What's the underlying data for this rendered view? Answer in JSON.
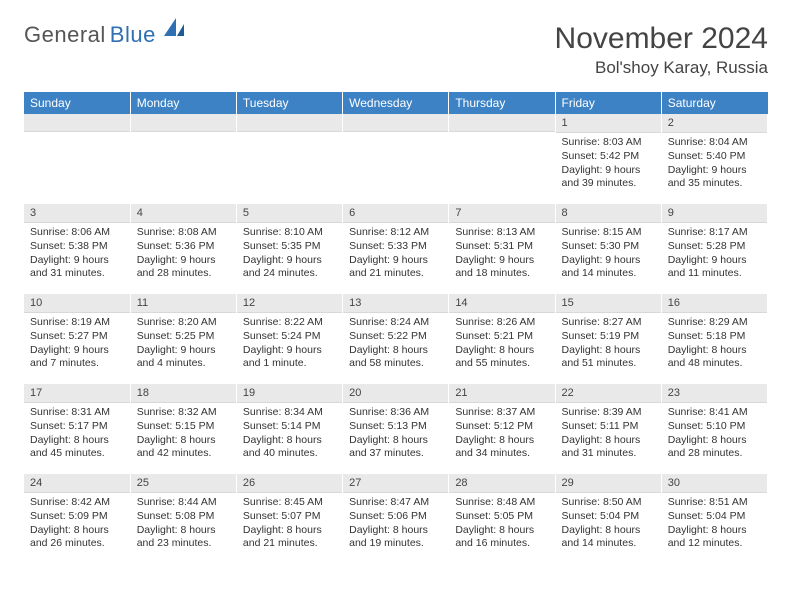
{
  "logo": {
    "text1": "General",
    "text2": "Blue"
  },
  "title": "November 2024",
  "location": "Bol'shoy Karay, Russia",
  "colors": {
    "header_bg": "#3d82c4",
    "header_text": "#ffffff",
    "daynum_bg": "#e9e9e9",
    "logo_blue": "#2f6fb3",
    "logo_gray": "#555555"
  },
  "weekdays": [
    "Sunday",
    "Monday",
    "Tuesday",
    "Wednesday",
    "Thursday",
    "Friday",
    "Saturday"
  ],
  "weeks": [
    [
      {
        "num": "",
        "lines": []
      },
      {
        "num": "",
        "lines": []
      },
      {
        "num": "",
        "lines": []
      },
      {
        "num": "",
        "lines": []
      },
      {
        "num": "",
        "lines": []
      },
      {
        "num": "1",
        "lines": [
          "Sunrise: 8:03 AM",
          "Sunset: 5:42 PM",
          "Daylight: 9 hours and 39 minutes."
        ]
      },
      {
        "num": "2",
        "lines": [
          "Sunrise: 8:04 AM",
          "Sunset: 5:40 PM",
          "Daylight: 9 hours and 35 minutes."
        ]
      }
    ],
    [
      {
        "num": "3",
        "lines": [
          "Sunrise: 8:06 AM",
          "Sunset: 5:38 PM",
          "Daylight: 9 hours and 31 minutes."
        ]
      },
      {
        "num": "4",
        "lines": [
          "Sunrise: 8:08 AM",
          "Sunset: 5:36 PM",
          "Daylight: 9 hours and 28 minutes."
        ]
      },
      {
        "num": "5",
        "lines": [
          "Sunrise: 8:10 AM",
          "Sunset: 5:35 PM",
          "Daylight: 9 hours and 24 minutes."
        ]
      },
      {
        "num": "6",
        "lines": [
          "Sunrise: 8:12 AM",
          "Sunset: 5:33 PM",
          "Daylight: 9 hours and 21 minutes."
        ]
      },
      {
        "num": "7",
        "lines": [
          "Sunrise: 8:13 AM",
          "Sunset: 5:31 PM",
          "Daylight: 9 hours and 18 minutes."
        ]
      },
      {
        "num": "8",
        "lines": [
          "Sunrise: 8:15 AM",
          "Sunset: 5:30 PM",
          "Daylight: 9 hours and 14 minutes."
        ]
      },
      {
        "num": "9",
        "lines": [
          "Sunrise: 8:17 AM",
          "Sunset: 5:28 PM",
          "Daylight: 9 hours and 11 minutes."
        ]
      }
    ],
    [
      {
        "num": "10",
        "lines": [
          "Sunrise: 8:19 AM",
          "Sunset: 5:27 PM",
          "Daylight: 9 hours and 7 minutes."
        ]
      },
      {
        "num": "11",
        "lines": [
          "Sunrise: 8:20 AM",
          "Sunset: 5:25 PM",
          "Daylight: 9 hours and 4 minutes."
        ]
      },
      {
        "num": "12",
        "lines": [
          "Sunrise: 8:22 AM",
          "Sunset: 5:24 PM",
          "Daylight: 9 hours and 1 minute."
        ]
      },
      {
        "num": "13",
        "lines": [
          "Sunrise: 8:24 AM",
          "Sunset: 5:22 PM",
          "Daylight: 8 hours and 58 minutes."
        ]
      },
      {
        "num": "14",
        "lines": [
          "Sunrise: 8:26 AM",
          "Sunset: 5:21 PM",
          "Daylight: 8 hours and 55 minutes."
        ]
      },
      {
        "num": "15",
        "lines": [
          "Sunrise: 8:27 AM",
          "Sunset: 5:19 PM",
          "Daylight: 8 hours and 51 minutes."
        ]
      },
      {
        "num": "16",
        "lines": [
          "Sunrise: 8:29 AM",
          "Sunset: 5:18 PM",
          "Daylight: 8 hours and 48 minutes."
        ]
      }
    ],
    [
      {
        "num": "17",
        "lines": [
          "Sunrise: 8:31 AM",
          "Sunset: 5:17 PM",
          "Daylight: 8 hours and 45 minutes."
        ]
      },
      {
        "num": "18",
        "lines": [
          "Sunrise: 8:32 AM",
          "Sunset: 5:15 PM",
          "Daylight: 8 hours and 42 minutes."
        ]
      },
      {
        "num": "19",
        "lines": [
          "Sunrise: 8:34 AM",
          "Sunset: 5:14 PM",
          "Daylight: 8 hours and 40 minutes."
        ]
      },
      {
        "num": "20",
        "lines": [
          "Sunrise: 8:36 AM",
          "Sunset: 5:13 PM",
          "Daylight: 8 hours and 37 minutes."
        ]
      },
      {
        "num": "21",
        "lines": [
          "Sunrise: 8:37 AM",
          "Sunset: 5:12 PM",
          "Daylight: 8 hours and 34 minutes."
        ]
      },
      {
        "num": "22",
        "lines": [
          "Sunrise: 8:39 AM",
          "Sunset: 5:11 PM",
          "Daylight: 8 hours and 31 minutes."
        ]
      },
      {
        "num": "23",
        "lines": [
          "Sunrise: 8:41 AM",
          "Sunset: 5:10 PM",
          "Daylight: 8 hours and 28 minutes."
        ]
      }
    ],
    [
      {
        "num": "24",
        "lines": [
          "Sunrise: 8:42 AM",
          "Sunset: 5:09 PM",
          "Daylight: 8 hours and 26 minutes."
        ]
      },
      {
        "num": "25",
        "lines": [
          "Sunrise: 8:44 AM",
          "Sunset: 5:08 PM",
          "Daylight: 8 hours and 23 minutes."
        ]
      },
      {
        "num": "26",
        "lines": [
          "Sunrise: 8:45 AM",
          "Sunset: 5:07 PM",
          "Daylight: 8 hours and 21 minutes."
        ]
      },
      {
        "num": "27",
        "lines": [
          "Sunrise: 8:47 AM",
          "Sunset: 5:06 PM",
          "Daylight: 8 hours and 19 minutes."
        ]
      },
      {
        "num": "28",
        "lines": [
          "Sunrise: 8:48 AM",
          "Sunset: 5:05 PM",
          "Daylight: 8 hours and 16 minutes."
        ]
      },
      {
        "num": "29",
        "lines": [
          "Sunrise: 8:50 AM",
          "Sunset: 5:04 PM",
          "Daylight: 8 hours and 14 minutes."
        ]
      },
      {
        "num": "30",
        "lines": [
          "Sunrise: 8:51 AM",
          "Sunset: 5:04 PM",
          "Daylight: 8 hours and 12 minutes."
        ]
      }
    ]
  ]
}
